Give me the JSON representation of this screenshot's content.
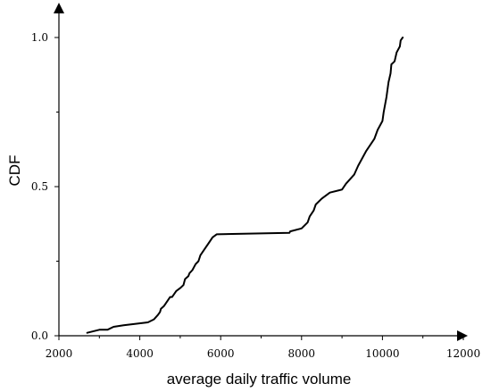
{
  "chart_data": {
    "type": "line",
    "title": "",
    "xlabel": "average daily traffic volume",
    "ylabel": "CDF",
    "xlim": [
      2000,
      12000
    ],
    "ylim": [
      0,
      1.0
    ],
    "grid": false,
    "legend": "none",
    "xticks": [
      {
        "value": 2000,
        "label": "2000"
      },
      {
        "value": 4000,
        "label": "4000"
      },
      {
        "value": 6000,
        "label": "6000"
      },
      {
        "value": 8000,
        "label": "8000"
      },
      {
        "value": 10000,
        "label": "10000"
      },
      {
        "value": 12000,
        "label": "12000"
      }
    ],
    "yticks": [
      {
        "value": 0,
        "label": "0.0"
      },
      {
        "value": 0.5,
        "label": "0.5"
      },
      {
        "value": 1.0,
        "label": "1.0"
      }
    ],
    "series": [
      {
        "color": "#000000",
        "x": [
          2700,
          3000,
          3200,
          3350,
          3600,
          3900,
          4200,
          4350,
          4450,
          4500,
          4520,
          4600,
          4700,
          4750,
          4800,
          4900,
          5000,
          5080,
          5120,
          5200,
          5230,
          5300,
          5380,
          5450,
          5500,
          5600,
          5700,
          5800,
          5900,
          7700,
          7720,
          8000,
          8150,
          8200,
          8300,
          8350,
          8500,
          8700,
          9000,
          9100,
          9300,
          9400,
          9600,
          9800,
          9880,
          10000,
          10030,
          10100,
          10150,
          10200,
          10220,
          10300,
          10350,
          10430,
          10450,
          10500
        ],
        "y": [
          0.01,
          0.02,
          0.02,
          0.03,
          0.035,
          0.04,
          0.045,
          0.055,
          0.07,
          0.08,
          0.09,
          0.1,
          0.12,
          0.13,
          0.13,
          0.15,
          0.16,
          0.17,
          0.19,
          0.2,
          0.21,
          0.22,
          0.24,
          0.25,
          0.27,
          0.29,
          0.31,
          0.33,
          0.34,
          0.345,
          0.35,
          0.36,
          0.38,
          0.4,
          0.42,
          0.44,
          0.46,
          0.48,
          0.49,
          0.51,
          0.54,
          0.57,
          0.62,
          0.66,
          0.69,
          0.72,
          0.75,
          0.8,
          0.85,
          0.88,
          0.91,
          0.92,
          0.95,
          0.97,
          0.99,
          1.0
        ]
      }
    ]
  }
}
